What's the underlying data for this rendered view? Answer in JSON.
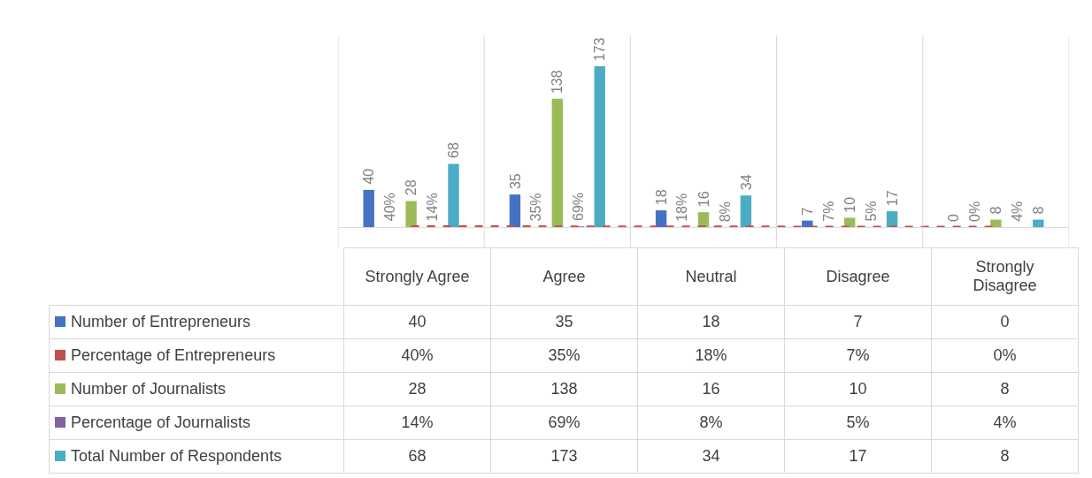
{
  "chart_data": {
    "type": "bar",
    "categories": [
      "Strongly Agree",
      "Agree",
      "Neutral",
      "Disagree",
      "Strongly Disagree"
    ],
    "series": [
      {
        "name": "Number of Entrepreneurs",
        "color": "#4472c4",
        "values": [
          40,
          35,
          18,
          7,
          0
        ],
        "value_labels": [
          "40",
          "35",
          "18",
          "7",
          "0"
        ]
      },
      {
        "name": "Percentage of Entrepreneurs",
        "type": "line",
        "line_style": "dashed",
        "color": "#c0504d",
        "values": [
          0.4,
          0.35,
          0.18,
          0.07,
          0
        ],
        "value_labels": [
          "40%",
          "35%",
          "18%",
          "7%",
          "0%"
        ]
      },
      {
        "name": "Number of Journalists",
        "color": "#9bbb59",
        "values": [
          28,
          138,
          16,
          10,
          8
        ],
        "value_labels": [
          "28",
          "138",
          "16",
          "10",
          "8"
        ]
      },
      {
        "name": "Percentage of Journalists",
        "color": "#8064a2",
        "values": [
          0.14,
          0.69,
          0.08,
          0.05,
          0.04
        ],
        "value_labels": [
          "14%",
          "69%",
          "8%",
          "5%",
          "4%"
        ]
      },
      {
        "name": "Total Number of Respondents",
        "color": "#4bacc6",
        "values": [
          68,
          173,
          34,
          17,
          8
        ],
        "value_labels": [
          "68",
          "173",
          "34",
          "17",
          "8"
        ]
      }
    ],
    "data_labels": true,
    "grid": "x",
    "legend": "bottom left",
    "marker": "none",
    "tick_labels": "x"
  }
}
